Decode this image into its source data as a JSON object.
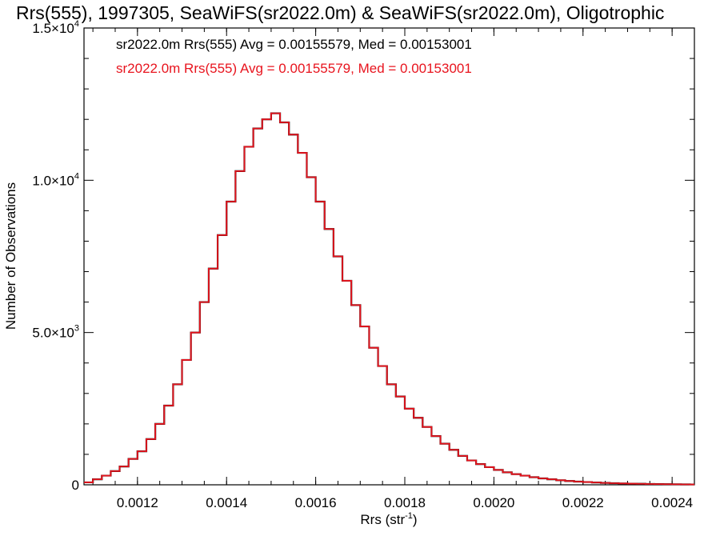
{
  "chart_data": {
    "type": "line",
    "title": "Rrs(555), 1997305, SeaWiFS(sr2022.0m) & SeaWiFS(sr2022.0m), Oligotrophic",
    "xlabel": "Rrs (str",
    "xlabel_sup": "-1",
    "xlabel_end": ")",
    "ylabel": "Number of Observations",
    "xlim": [
      0.00108,
      0.00245
    ],
    "ylim": [
      0,
      15000
    ],
    "x_ticks": [
      {
        "value": 0.0012,
        "label": "0.0012"
      },
      {
        "value": 0.0014,
        "label": "0.0014"
      },
      {
        "value": 0.0016,
        "label": "0.0016"
      },
      {
        "value": 0.0018,
        "label": "0.0018"
      },
      {
        "value": 0.002,
        "label": "0.0020"
      },
      {
        "value": 0.0022,
        "label": "0.0022"
      },
      {
        "value": 0.0024,
        "label": "0.0024"
      }
    ],
    "y_ticks": [
      {
        "value": 0,
        "label": "0",
        "sup": ""
      },
      {
        "value": 5000,
        "label": "5.0×10",
        "sup": "3"
      },
      {
        "value": 10000,
        "label": "1.0×10",
        "sup": "4"
      },
      {
        "value": 15000,
        "label": "1.5×10",
        "sup": "4"
      }
    ],
    "grid": false,
    "legend_position": "top-left",
    "series": [
      {
        "name": "sr2022.0m Rrs(555) Avg = 0.00155579, Med = 0.00153001",
        "color": "#000000",
        "x": [
          0.00108,
          0.0011,
          0.00112,
          0.00114,
          0.00116,
          0.00118,
          0.0012,
          0.00122,
          0.00124,
          0.00126,
          0.00128,
          0.0013,
          0.00132,
          0.00134,
          0.00136,
          0.00138,
          0.0014,
          0.00142,
          0.00144,
          0.00146,
          0.00148,
          0.0015,
          0.00152,
          0.00154,
          0.00156,
          0.00158,
          0.0016,
          0.00162,
          0.00164,
          0.00166,
          0.00168,
          0.0017,
          0.00172,
          0.00174,
          0.00176,
          0.00178,
          0.0018,
          0.00182,
          0.00184,
          0.00186,
          0.00188,
          0.0019,
          0.00192,
          0.00194,
          0.00196,
          0.00198,
          0.002,
          0.00202,
          0.00204,
          0.00206,
          0.00208,
          0.0021,
          0.00212,
          0.00214,
          0.00216,
          0.00218,
          0.0022,
          0.00222,
          0.00224,
          0.00226,
          0.00228,
          0.0023,
          0.00232,
          0.00234,
          0.00236,
          0.00238,
          0.0024,
          0.00242,
          0.00244
        ],
        "y": [
          80,
          180,
          300,
          450,
          600,
          850,
          1100,
          1500,
          2000,
          2600,
          3300,
          4100,
          5000,
          6000,
          7100,
          8200,
          9300,
          10300,
          11100,
          11700,
          12000,
          12200,
          11900,
          11500,
          10900,
          10100,
          9300,
          8400,
          7500,
          6700,
          5900,
          5200,
          4500,
          3900,
          3300,
          2900,
          2500,
          2200,
          1900,
          1600,
          1350,
          1150,
          950,
          800,
          680,
          580,
          490,
          410,
          350,
          300,
          250,
          210,
          180,
          150,
          125,
          105,
          90,
          75,
          62,
          52,
          45,
          38,
          32,
          27,
          23,
          19,
          16,
          13,
          11
        ]
      },
      {
        "name": "sr2022.0m Rrs(555) Avg = 0.00155579, Med = 0.00153001",
        "color": "#e8141e",
        "x": [
          0.00108,
          0.0011,
          0.00112,
          0.00114,
          0.00116,
          0.00118,
          0.0012,
          0.00122,
          0.00124,
          0.00126,
          0.00128,
          0.0013,
          0.00132,
          0.00134,
          0.00136,
          0.00138,
          0.0014,
          0.00142,
          0.00144,
          0.00146,
          0.00148,
          0.0015,
          0.00152,
          0.00154,
          0.00156,
          0.00158,
          0.0016,
          0.00162,
          0.00164,
          0.00166,
          0.00168,
          0.0017,
          0.00172,
          0.00174,
          0.00176,
          0.00178,
          0.0018,
          0.00182,
          0.00184,
          0.00186,
          0.00188,
          0.0019,
          0.00192,
          0.00194,
          0.00196,
          0.00198,
          0.002,
          0.00202,
          0.00204,
          0.00206,
          0.00208,
          0.0021,
          0.00212,
          0.00214,
          0.00216,
          0.00218,
          0.0022,
          0.00222,
          0.00224,
          0.00226,
          0.00228,
          0.0023,
          0.00232,
          0.00234,
          0.00236,
          0.00238,
          0.0024,
          0.00242,
          0.00244
        ],
        "y": [
          80,
          180,
          300,
          450,
          600,
          850,
          1100,
          1500,
          2000,
          2600,
          3300,
          4100,
          5000,
          6000,
          7100,
          8200,
          9300,
          10300,
          11100,
          11700,
          12000,
          12200,
          11900,
          11500,
          10900,
          10100,
          9300,
          8400,
          7500,
          6700,
          5900,
          5200,
          4500,
          3900,
          3300,
          2900,
          2500,
          2200,
          1900,
          1600,
          1350,
          1150,
          950,
          800,
          680,
          580,
          490,
          410,
          350,
          300,
          250,
          210,
          180,
          150,
          125,
          105,
          90,
          75,
          62,
          52,
          45,
          38,
          32,
          27,
          23,
          19,
          16,
          13,
          11
        ]
      }
    ]
  }
}
